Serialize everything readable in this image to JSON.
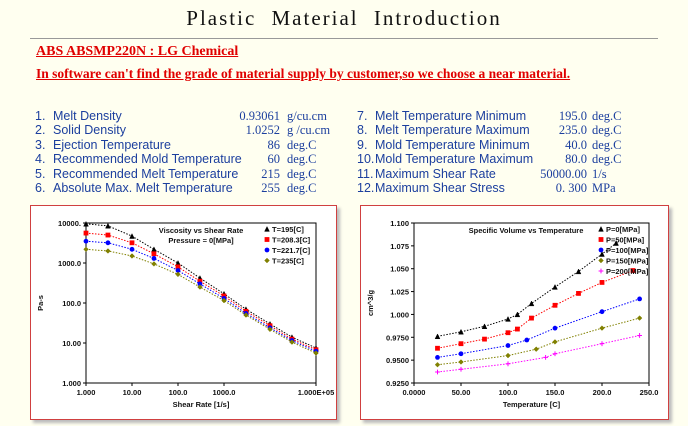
{
  "header": {
    "title": "Plastic Material Introduction",
    "material": "ABS  ABSMP220N : LG Chemical",
    "note": "In software can't find the grade of material supply by customer,so we choose a near material."
  },
  "properties": {
    "left": [
      {
        "no": "1.",
        "name": "Melt Density",
        "value": "0.93061",
        "unit": "g/cu.cm"
      },
      {
        "no": "2.",
        "name": "Solid Density",
        "value": "1.0252",
        "unit": "g /cu.cm"
      },
      {
        "no": "3.",
        "name": "Ejection Temperature",
        "value": "86",
        "unit": "deg.C"
      },
      {
        "no": "4.",
        "name": "Recommended Mold Temperature",
        "value": "60",
        "unit": "deg.C"
      },
      {
        "no": "5.",
        "name": "Recommended Melt Temperature",
        "value": "215",
        "unit": "deg.C"
      },
      {
        "no": "6.",
        "name": "Absolute Max. Melt Temperature",
        "value": "255",
        "unit": "deg.C"
      }
    ],
    "right": [
      {
        "no": "7.",
        "name": "Melt  Temperature  Minimum",
        "value": "195.0",
        "unit": "deg.C"
      },
      {
        "no": "8.",
        "name": "Melt  Temperature  Maximum",
        "value": "235.0",
        "unit": "deg.C"
      },
      {
        "no": "9.",
        "name": "Mold  Temperature  Minimum",
        "value": "40.0",
        "unit": "deg.C"
      },
      {
        "no": "10.",
        "name": "Mold  Temperature  Maximum",
        "value": "80.0",
        "unit": "deg.C"
      },
      {
        "no": "11.",
        "name": "Maximum Shear Rate",
        "value": "50000.00",
        "unit": "1/s"
      },
      {
        "no": "12.",
        "name": "Maximum Shear Stress",
        "value": "0. 300",
        "unit": "MPa"
      }
    ]
  },
  "chart_data": [
    {
      "type": "scatter-line",
      "title": "Viscosity vs Shear Rate",
      "subtitle": "Pressure = 0[MPa]",
      "x_label": "Shear Rate [1/s]",
      "y_label": "Pa-s",
      "log_x": true,
      "log_y": true,
      "grid": false,
      "legend": "upper right",
      "xlim": [
        1,
        100000
      ],
      "ylim": [
        1,
        10000
      ],
      "xticks": [
        {
          "value": 1,
          "label": "1.000"
        },
        {
          "value": 10,
          "label": "10.00"
        },
        {
          "value": 100,
          "label": "100.0"
        },
        {
          "value": 1000,
          "label": "1000.0"
        },
        {
          "value": 100000,
          "label": "1.000E+05"
        }
      ],
      "yticks": [
        {
          "value": 1,
          "label": "1.000"
        },
        {
          "value": 10,
          "label": "10.00"
        },
        {
          "value": 100,
          "label": "100.0"
        },
        {
          "value": 1000,
          "label": "1000.0"
        },
        {
          "value": 10000,
          "label": "10000."
        }
      ],
      "series": [
        {
          "name": "T=195[C]",
          "color": "#000000",
          "marker": "triangle",
          "x": [
            1,
            3,
            10,
            30,
            100,
            300,
            1000,
            3000,
            10000,
            30000,
            100000
          ],
          "values": [
            9500,
            8500,
            4700,
            2200,
            1000,
            420,
            170,
            70,
            30,
            14,
            7.5
          ]
        },
        {
          "name": "T=208.3[C]",
          "color": "#ff0000",
          "marker": "square",
          "x": [
            1,
            3,
            10,
            30,
            100,
            300,
            1000,
            3000,
            10000,
            30000,
            100000
          ],
          "values": [
            5600,
            5000,
            3200,
            1700,
            800,
            350,
            150,
            62,
            27,
            12.5,
            6.8
          ]
        },
        {
          "name": "T=221.7[C]",
          "color": "#0000ff",
          "marker": "circle",
          "x": [
            1,
            3,
            10,
            30,
            100,
            300,
            1000,
            3000,
            10000,
            30000,
            100000
          ],
          "values": [
            3500,
            3200,
            2200,
            1300,
            650,
            300,
            130,
            55,
            24,
            11.5,
            6.2
          ]
        },
        {
          "name": "T=235[C]",
          "color": "#808000",
          "marker": "diamond",
          "x": [
            1,
            3,
            10,
            30,
            100,
            300,
            1000,
            3000,
            10000,
            30000,
            100000
          ],
          "values": [
            2200,
            2000,
            1500,
            950,
            520,
            250,
            115,
            50,
            22,
            10.5,
            5.6
          ]
        }
      ]
    },
    {
      "type": "scatter-line",
      "title": "Specific Volume vs Temperature",
      "x_label": "Temperature [C]",
      "y_label": "cm^3/g",
      "log_x": false,
      "log_y": false,
      "grid": false,
      "legend": "upper right",
      "xlim": [
        0,
        250
      ],
      "ylim": [
        0.925,
        1.1
      ],
      "xticks": [
        {
          "value": 0,
          "label": "0.0000"
        },
        {
          "value": 50,
          "label": "50.00"
        },
        {
          "value": 100,
          "label": "100.0"
        },
        {
          "value": 150,
          "label": "150.0"
        },
        {
          "value": 200,
          "label": "200.0"
        },
        {
          "value": 250,
          "label": "250.0"
        }
      ],
      "yticks": [
        {
          "value": 0.925,
          "label": "0.9250"
        },
        {
          "value": 0.95,
          "label": "0.9500"
        },
        {
          "value": 0.975,
          "label": "0.9750"
        },
        {
          "value": 1,
          "label": "1.000"
        },
        {
          "value": 1.025,
          "label": "1.025"
        },
        {
          "value": 1.05,
          "label": "1.050"
        },
        {
          "value": 1.075,
          "label": "1.075"
        },
        {
          "value": 1.1,
          "label": "1.100"
        }
      ],
      "series": [
        {
          "name": "P=0[MPa]",
          "color": "#000000",
          "marker": "triangle",
          "x": [
            25,
            50,
            75,
            100,
            110,
            125,
            150,
            175,
            200,
            215
          ],
          "values": [
            0.976,
            0.981,
            0.987,
            0.995,
            1.0,
            1.012,
            1.03,
            1.047,
            1.066,
            1.078
          ]
        },
        {
          "name": "P=50[MPa]",
          "color": "#ff0000",
          "marker": "square",
          "x": [
            25,
            50,
            75,
            100,
            110,
            125,
            150,
            175,
            200,
            233
          ],
          "values": [
            0.963,
            0.968,
            0.973,
            0.98,
            0.984,
            0.996,
            1.01,
            1.023,
            1.035,
            1.048
          ]
        },
        {
          "name": "P=100[MPa]",
          "color": "#0000ff",
          "marker": "circle",
          "x": [
            25,
            50,
            100,
            120,
            150,
            200,
            240
          ],
          "values": [
            0.953,
            0.957,
            0.966,
            0.972,
            0.985,
            1.003,
            1.017
          ]
        },
        {
          "name": "P=150[MPa]",
          "color": "#808000",
          "marker": "diamond",
          "x": [
            25,
            50,
            100,
            130,
            150,
            200,
            240
          ],
          "values": [
            0.945,
            0.948,
            0.955,
            0.962,
            0.97,
            0.985,
            0.996
          ]
        },
        {
          "name": "P=200[MPa]",
          "color": "#ff00ff",
          "marker": "plus",
          "x": [
            25,
            50,
            100,
            140,
            150,
            200,
            240
          ],
          "values": [
            0.937,
            0.94,
            0.946,
            0.953,
            0.957,
            0.968,
            0.977
          ]
        }
      ]
    }
  ]
}
